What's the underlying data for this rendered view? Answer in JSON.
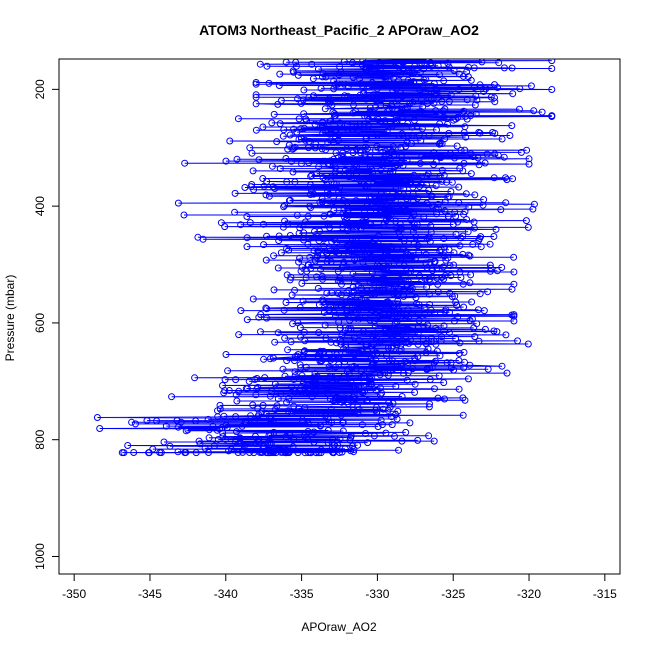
{
  "chart_data": {
    "type": "scatter",
    "title": "ATOM3 Northeast_Pacific_2 APOraw_AO2",
    "xlabel": "APOraw_AO2",
    "ylabel": "Pressure (mbar)",
    "xlim": [
      -351,
      -314
    ],
    "ylim": [
      1030,
      148
    ],
    "y_reversed": true,
    "x_ticks": [
      -350,
      -345,
      -340,
      -335,
      -330,
      -325,
      -320,
      -315
    ],
    "y_ticks": [
      200,
      400,
      600,
      800,
      1000
    ],
    "grid": false,
    "legend": "none",
    "series_color": "#0000FF",
    "marker": "open-circle",
    "connected": true,
    "profile_bands": [
      {
        "p_range": [
          148,
          250
        ],
        "x_center": -329,
        "x_spread": 4.5,
        "x_min": -338,
        "x_max": -318.5
      },
      {
        "p_range": [
          250,
          350
        ],
        "x_center": -330,
        "x_spread": 4.5,
        "x_min": -345,
        "x_max": -320
      },
      {
        "p_range": [
          350,
          480
        ],
        "x_center": -330,
        "x_spread": 4.5,
        "x_min": -344,
        "x_max": -315.5
      },
      {
        "p_range": [
          480,
          600
        ],
        "x_center": -329.5,
        "x_spread": 4,
        "x_min": -339,
        "x_max": -321
      },
      {
        "p_range": [
          600,
          690
        ],
        "x_center": -330.5,
        "x_spread": 4,
        "x_min": -343,
        "x_max": -319.5
      },
      {
        "p_range": [
          690,
          760
        ],
        "x_center": -333,
        "x_spread": 4,
        "x_min": -344,
        "x_max": -324
      },
      {
        "p_range": [
          760,
          822
        ],
        "x_center": -336,
        "x_spread": 5,
        "x_min": -349.5,
        "x_max": -323
      }
    ],
    "floor_pressure": 822,
    "floor_x_range": [
      -347,
      -331
    ]
  }
}
